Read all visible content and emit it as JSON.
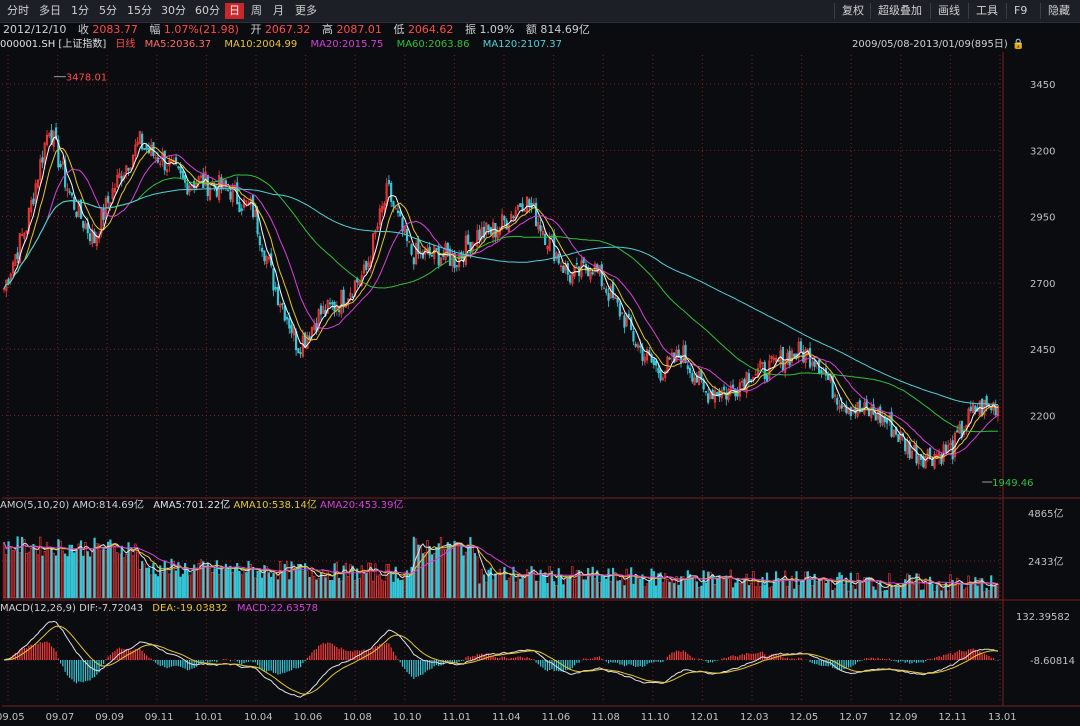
{
  "toolbar": {
    "periods": [
      "分时",
      "多日",
      "1分",
      "5分",
      "15分",
      "30分",
      "60分",
      "日",
      "周",
      "月",
      "更多"
    ],
    "active_period": "日",
    "right_buttons": [
      "复权",
      "超级叠加",
      "画线",
      "工具",
      "F9",
      "隐藏"
    ]
  },
  "quote": {
    "date": "2012/12/10",
    "close_label": "收",
    "close": "2083.77",
    "change_label": "幅",
    "change": "1.07%(21.98)",
    "open_label": "开",
    "open": "2067.32",
    "high_label": "高",
    "high": "2087.01",
    "low_label": "低",
    "low": "2064.62",
    "amp_label": "振",
    "amp": "1.09%",
    "amount_label": "额",
    "amount": "814.69亿"
  },
  "ma_legend": {
    "symbol": "000001.SH",
    "name": "[上证指数]",
    "period": "日线",
    "ma5": "MA5:2036.37",
    "ma10": "MA10:2004.99",
    "ma20": "MA20:2015.75",
    "ma60": "MA60:2063.86",
    "ma120": "MA120:2107.37",
    "range": "2009/05/08-2013/01/09(895日)"
  },
  "amo_legend": {
    "title": "AMO(5,10,20)",
    "amo": "AMO:814.69亿",
    "amo5": "AMA5:701.22亿",
    "amo10": "AMA10:538.14亿",
    "amo20": "AMA20:453.39亿"
  },
  "macd_legend": {
    "title": "MACD(12,26,9)",
    "dif": "DIF:-7.72043",
    "dea": "DEA:-19.03832",
    "macd": "MACD:22.63578"
  },
  "colors": {
    "up": "#ff3b3b",
    "down": "#35c8d8",
    "ma5": "#ffffff",
    "ma10": "#e8c62e",
    "ma20": "#d63fd6",
    "ma60": "#2fbf3a",
    "ma120": "#4fd1d9",
    "bg": "#0b0c10"
  },
  "chart_data": {
    "type": "line",
    "x_ticks": [
      "09.05",
      "09.07",
      "09.09",
      "09.11",
      "10.01",
      "10.04",
      "10.06",
      "10.08",
      "10.10",
      "11.01",
      "11.04",
      "11.06",
      "11.08",
      "11.10",
      "12.01",
      "12.03",
      "12.05",
      "12.07",
      "12.09",
      "12.11",
      "13.01"
    ],
    "price_axis": {
      "ticks": [
        3450,
        3200,
        2950,
        2700,
        2450,
        2200
      ],
      "ylim": [
        1900,
        3560
      ]
    },
    "amo_axis": {
      "ticks": [
        "4865亿",
        "2433亿"
      ]
    },
    "macd_axis": {
      "ticks": [
        "132.39582",
        "-8.60814"
      ]
    },
    "annotations": {
      "high": "3478.01",
      "low": "1949.46"
    },
    "price_series": [
      {
        "date": "09.05",
        "close": 2680
      },
      {
        "date": "09.06",
        "close": 2880
      },
      {
        "date": "09.07",
        "close": 3300
      },
      {
        "date": "09.08",
        "close": 3050
      },
      {
        "date": "09.09",
        "close": 2850
      },
      {
        "date": "09.10",
        "close": 3050
      },
      {
        "date": "09.11",
        "close": 3250
      },
      {
        "date": "09.12",
        "close": 3200
      },
      {
        "date": "10.01",
        "close": 3050
      },
      {
        "date": "10.02",
        "close": 3050
      },
      {
        "date": "10.03",
        "close": 3080
      },
      {
        "date": "10.04",
        "close": 3000
      },
      {
        "date": "10.05",
        "close": 2650
      },
      {
        "date": "10.06",
        "close": 2450
      },
      {
        "date": "10.07",
        "close": 2620
      },
      {
        "date": "10.08",
        "close": 2650
      },
      {
        "date": "10.09",
        "close": 2700
      },
      {
        "date": "10.10",
        "close": 3050
      },
      {
        "date": "10.11",
        "close": 2850
      },
      {
        "date": "10.12",
        "close": 2800
      },
      {
        "date": "11.01",
        "close": 2750
      },
      {
        "date": "11.02",
        "close": 2900
      },
      {
        "date": "11.03",
        "close": 2950
      },
      {
        "date": "11.04",
        "close": 3000
      },
      {
        "date": "11.05",
        "close": 2850
      },
      {
        "date": "11.06",
        "close": 2750
      },
      {
        "date": "11.07",
        "close": 2800
      },
      {
        "date": "11.08",
        "close": 2600
      },
      {
        "date": "11.09",
        "close": 2450
      },
      {
        "date": "11.10",
        "close": 2400
      },
      {
        "date": "11.11",
        "close": 2450
      },
      {
        "date": "11.12",
        "close": 2250
      },
      {
        "date": "12.01",
        "close": 2280
      },
      {
        "date": "12.02",
        "close": 2400
      },
      {
        "date": "12.03",
        "close": 2380
      },
      {
        "date": "12.04",
        "close": 2400
      },
      {
        "date": "12.05",
        "close": 2420
      },
      {
        "date": "12.06",
        "close": 2300
      },
      {
        "date": "12.07",
        "close": 2200
      },
      {
        "date": "12.08",
        "close": 2150
      },
      {
        "date": "12.09",
        "close": 2100
      },
      {
        "date": "12.10",
        "close": 2080
      },
      {
        "date": "12.11",
        "close": 2050
      },
      {
        "date": "12.12",
        "close": 2200
      },
      {
        "date": "13.01",
        "close": 2270
      }
    ]
  }
}
